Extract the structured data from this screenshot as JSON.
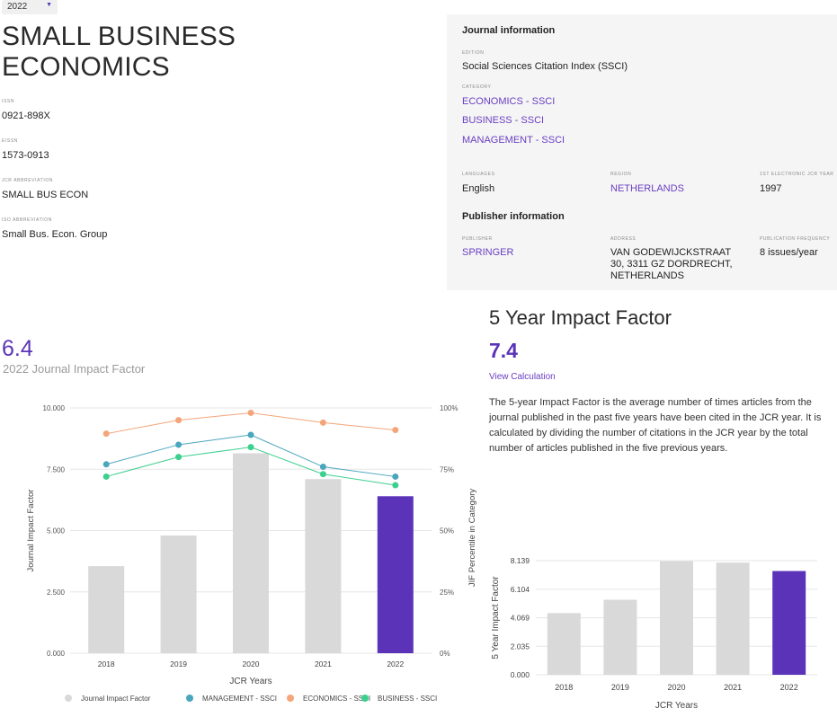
{
  "year_select": {
    "value": "2022"
  },
  "journal": {
    "title": "SMALL BUSINESS ECONOMICS",
    "issn_label": "ISSN",
    "issn": "0921-898X",
    "eissn_label": "EISSN",
    "eissn": "1573-0913",
    "jcr_abbrev_label": "JCR ABBREVIATION",
    "jcr_abbrev": "SMALL BUS ECON",
    "iso_abbrev_label": "ISO ABBREVIATION",
    "iso_abbrev": "Small Bus. Econ. Group"
  },
  "info": {
    "journal_header": "Journal information",
    "edition_label": "EDITION",
    "edition": "Social Sciences Citation Index (SSCI)",
    "category_label": "CATEGORY",
    "categories": [
      "ECONOMICS - SSCI",
      "BUSINESS - SSCI",
      "MANAGEMENT - SSCI"
    ],
    "languages_label": "LANGUAGES",
    "languages": "English",
    "region_label": "REGION",
    "region": "NETHERLANDS",
    "first_jcr_label": "1ST ELECTRONIC JCR YEAR",
    "first_jcr": "1997",
    "publisher_header": "Publisher information",
    "publisher_label": "PUBLISHER",
    "publisher": "SPRINGER",
    "address_label": "ADDRESS",
    "address": "VAN GODEWIJCKSTRAAT 30, 3311 GZ DORDRECHT, NETHERLANDS",
    "frequency_label": "PUBLICATION FREQUENCY",
    "frequency": "8 issues/year"
  },
  "jif": {
    "value": "6.4",
    "label": "2022 Journal Impact Factor"
  },
  "five_year": {
    "title": "5 Year Impact Factor",
    "value": "7.4",
    "link": "View Calculation",
    "description": "The 5-year Impact Factor is the average number of times articles from the journal published in the past five years have been cited in the JCR year. It is calculated by dividing the number of citations in the JCR year by the total number of articles published in the five previous years."
  },
  "colors": {
    "accent": "#5b33b8",
    "bar_grey": "#d9d9d9",
    "management": "#4aa6bd",
    "economics": "#f4a57a",
    "business": "#3ccf8e"
  },
  "chart_data": [
    {
      "type": "bar",
      "categories": [
        "2018",
        "2019",
        "2020",
        "2021",
        "2022"
      ],
      "xlabel": "JCR Years",
      "ylabel": "Journal Impact Factor",
      "ylabel_right": "JIF Percentile in Category",
      "ylim": [
        0,
        10
      ],
      "yticks": [
        "0.000",
        "2.500",
        "5.000",
        "7.500",
        "10.000"
      ],
      "ylim_right": [
        0,
        100
      ],
      "yticks_right": [
        "0%",
        "25%",
        "50%",
        "75%",
        "100%"
      ],
      "series": [
        {
          "name": "Journal Impact Factor",
          "type": "bar",
          "values": [
            3.55,
            4.8,
            8.15,
            7.1,
            6.4
          ],
          "highlight_last": true
        },
        {
          "name": "MANAGEMENT - SSCI",
          "type": "line",
          "axis": "right",
          "values": [
            77,
            85,
            89,
            76,
            72
          ]
        },
        {
          "name": "ECONOMICS - SSCI",
          "type": "line",
          "axis": "right",
          "values": [
            89.5,
            95,
            98,
            94,
            91
          ]
        },
        {
          "name": "BUSINESS - SSCI",
          "type": "line",
          "axis": "right",
          "values": [
            72,
            80,
            84,
            73,
            68.5
          ]
        }
      ],
      "grid": true,
      "legend": "bottom"
    },
    {
      "type": "bar",
      "categories": [
        "2018",
        "2019",
        "2020",
        "2021",
        "2022"
      ],
      "values": [
        4.4,
        5.35,
        8.1,
        8.0,
        7.4
      ],
      "xlabel": "JCR Years",
      "ylabel": "5 Year Impact Factor",
      "ylim": [
        0,
        8.139
      ],
      "yticks": [
        "0.000",
        "2.035",
        "4.069",
        "6.104",
        "8.139"
      ],
      "grid": true
    }
  ]
}
